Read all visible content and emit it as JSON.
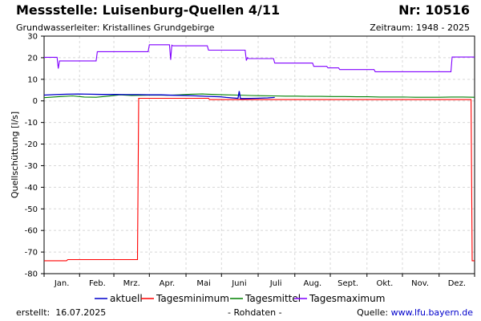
{
  "header": {
    "title": "Messstelle: Luisenburg-Quellen 4/11",
    "nr": "Nr: 10516",
    "subtitle": "Grundwasserleiter: Kristallines Grundgebirge",
    "period": "Zeitraum: 1948 - 2025"
  },
  "footer": {
    "created_label": "erstellt:",
    "created_date": "16.07.2025",
    "data_note": "- Rohdaten -",
    "source_label": "Quelle:",
    "source_url": "www.lfu.bayern.de"
  },
  "chart_data": {
    "type": "line",
    "title": "",
    "xlabel": "",
    "ylabel": "Quellschüttung [l/s]",
    "x_unit": "day of year",
    "xlim": [
      1,
      365
    ],
    "ylim": [
      -80,
      30
    ],
    "y_ticks": [
      30,
      20,
      10,
      0,
      -10,
      -20,
      -30,
      -40,
      -50,
      -60,
      -70,
      -80
    ],
    "x_ticks": [
      {
        "label": "Jan.",
        "x": 16
      },
      {
        "label": "Feb.",
        "x": 46
      },
      {
        "label": "Mrz.",
        "x": 75
      },
      {
        "label": "Apr.",
        "x": 105
      },
      {
        "label": "Mai",
        "x": 136
      },
      {
        "label": "Juni",
        "x": 166
      },
      {
        "label": "Juli",
        "x": 197
      },
      {
        "label": "Aug.",
        "x": 228
      },
      {
        "label": "Sept.",
        "x": 258
      },
      {
        "label": "Okt.",
        "x": 289
      },
      {
        "label": "Nov.",
        "x": 319
      },
      {
        "label": "Dez.",
        "x": 350
      }
    ],
    "grid": true,
    "legend_position": "bottom",
    "series": [
      {
        "name": "aktuell",
        "color": "#0000cc",
        "x": [
          1,
          10,
          20,
          30,
          40,
          50,
          60,
          70,
          80,
          90,
          100,
          110,
          120,
          130,
          140,
          150,
          155,
          160,
          165,
          166,
          167,
          170,
          180,
          190,
          196
        ],
        "y": [
          2.7,
          2.9,
          3.1,
          3.2,
          3.1,
          3.0,
          3.0,
          2.9,
          2.9,
          2.8,
          2.8,
          2.6,
          2.5,
          2.3,
          2.1,
          1.9,
          1.6,
          1.4,
          1.2,
          4.5,
          1.1,
          1.1,
          1.2,
          1.4,
          1.6
        ]
      },
      {
        "name": "Tagesminimum",
        "color": "#ff0000",
        "x": [
          1,
          20,
          21,
          80,
          81,
          140,
          141,
          362,
          363,
          365
        ],
        "y": [
          -74,
          -74,
          -73.5,
          -73.5,
          1.2,
          1.2,
          0.6,
          0.6,
          -74,
          -74
        ]
      },
      {
        "name": "Tagesmittel",
        "color": "#008000",
        "x": [
          1,
          15,
          25,
          35,
          45,
          55,
          65,
          75,
          85,
          95,
          105,
          115,
          125,
          135,
          145,
          155,
          165,
          175,
          185,
          195,
          205,
          215,
          225,
          235,
          245,
          255,
          265,
          275,
          285,
          295,
          305,
          315,
          325,
          335,
          345,
          355,
          365
        ],
        "y": [
          1.5,
          2.0,
          2.3,
          1.8,
          1.7,
          2.2,
          2.8,
          2.5,
          2.6,
          2.7,
          2.6,
          2.8,
          3.1,
          3.2,
          3.0,
          2.8,
          2.7,
          2.5,
          2.4,
          2.3,
          2.2,
          2.2,
          2.1,
          2.1,
          2.0,
          2.0,
          1.9,
          1.9,
          1.8,
          1.8,
          1.8,
          1.7,
          1.7,
          1.7,
          1.8,
          1.8,
          1.7
        ]
      },
      {
        "name": "Tagesmaximum",
        "color": "#8000ff",
        "x": [
          1,
          12,
          13,
          14,
          15,
          45,
          46,
          89,
          90,
          107,
          108,
          109,
          110,
          139,
          140,
          171,
          172,
          173,
          174,
          195,
          196,
          228,
          229,
          240,
          241,
          250,
          251,
          280,
          281,
          345,
          346,
          365
        ],
        "y": [
          20.2,
          20.2,
          15.0,
          18.5,
          18.5,
          18.5,
          22.8,
          22.8,
          26.0,
          26.0,
          19.0,
          25.8,
          25.5,
          25.5,
          23.5,
          23.5,
          18.7,
          20.0,
          19.6,
          19.6,
          17.5,
          17.5,
          16.0,
          16.0,
          15.3,
          15.3,
          14.5,
          14.5,
          13.5,
          13.5,
          20.3,
          20.3
        ]
      }
    ]
  }
}
